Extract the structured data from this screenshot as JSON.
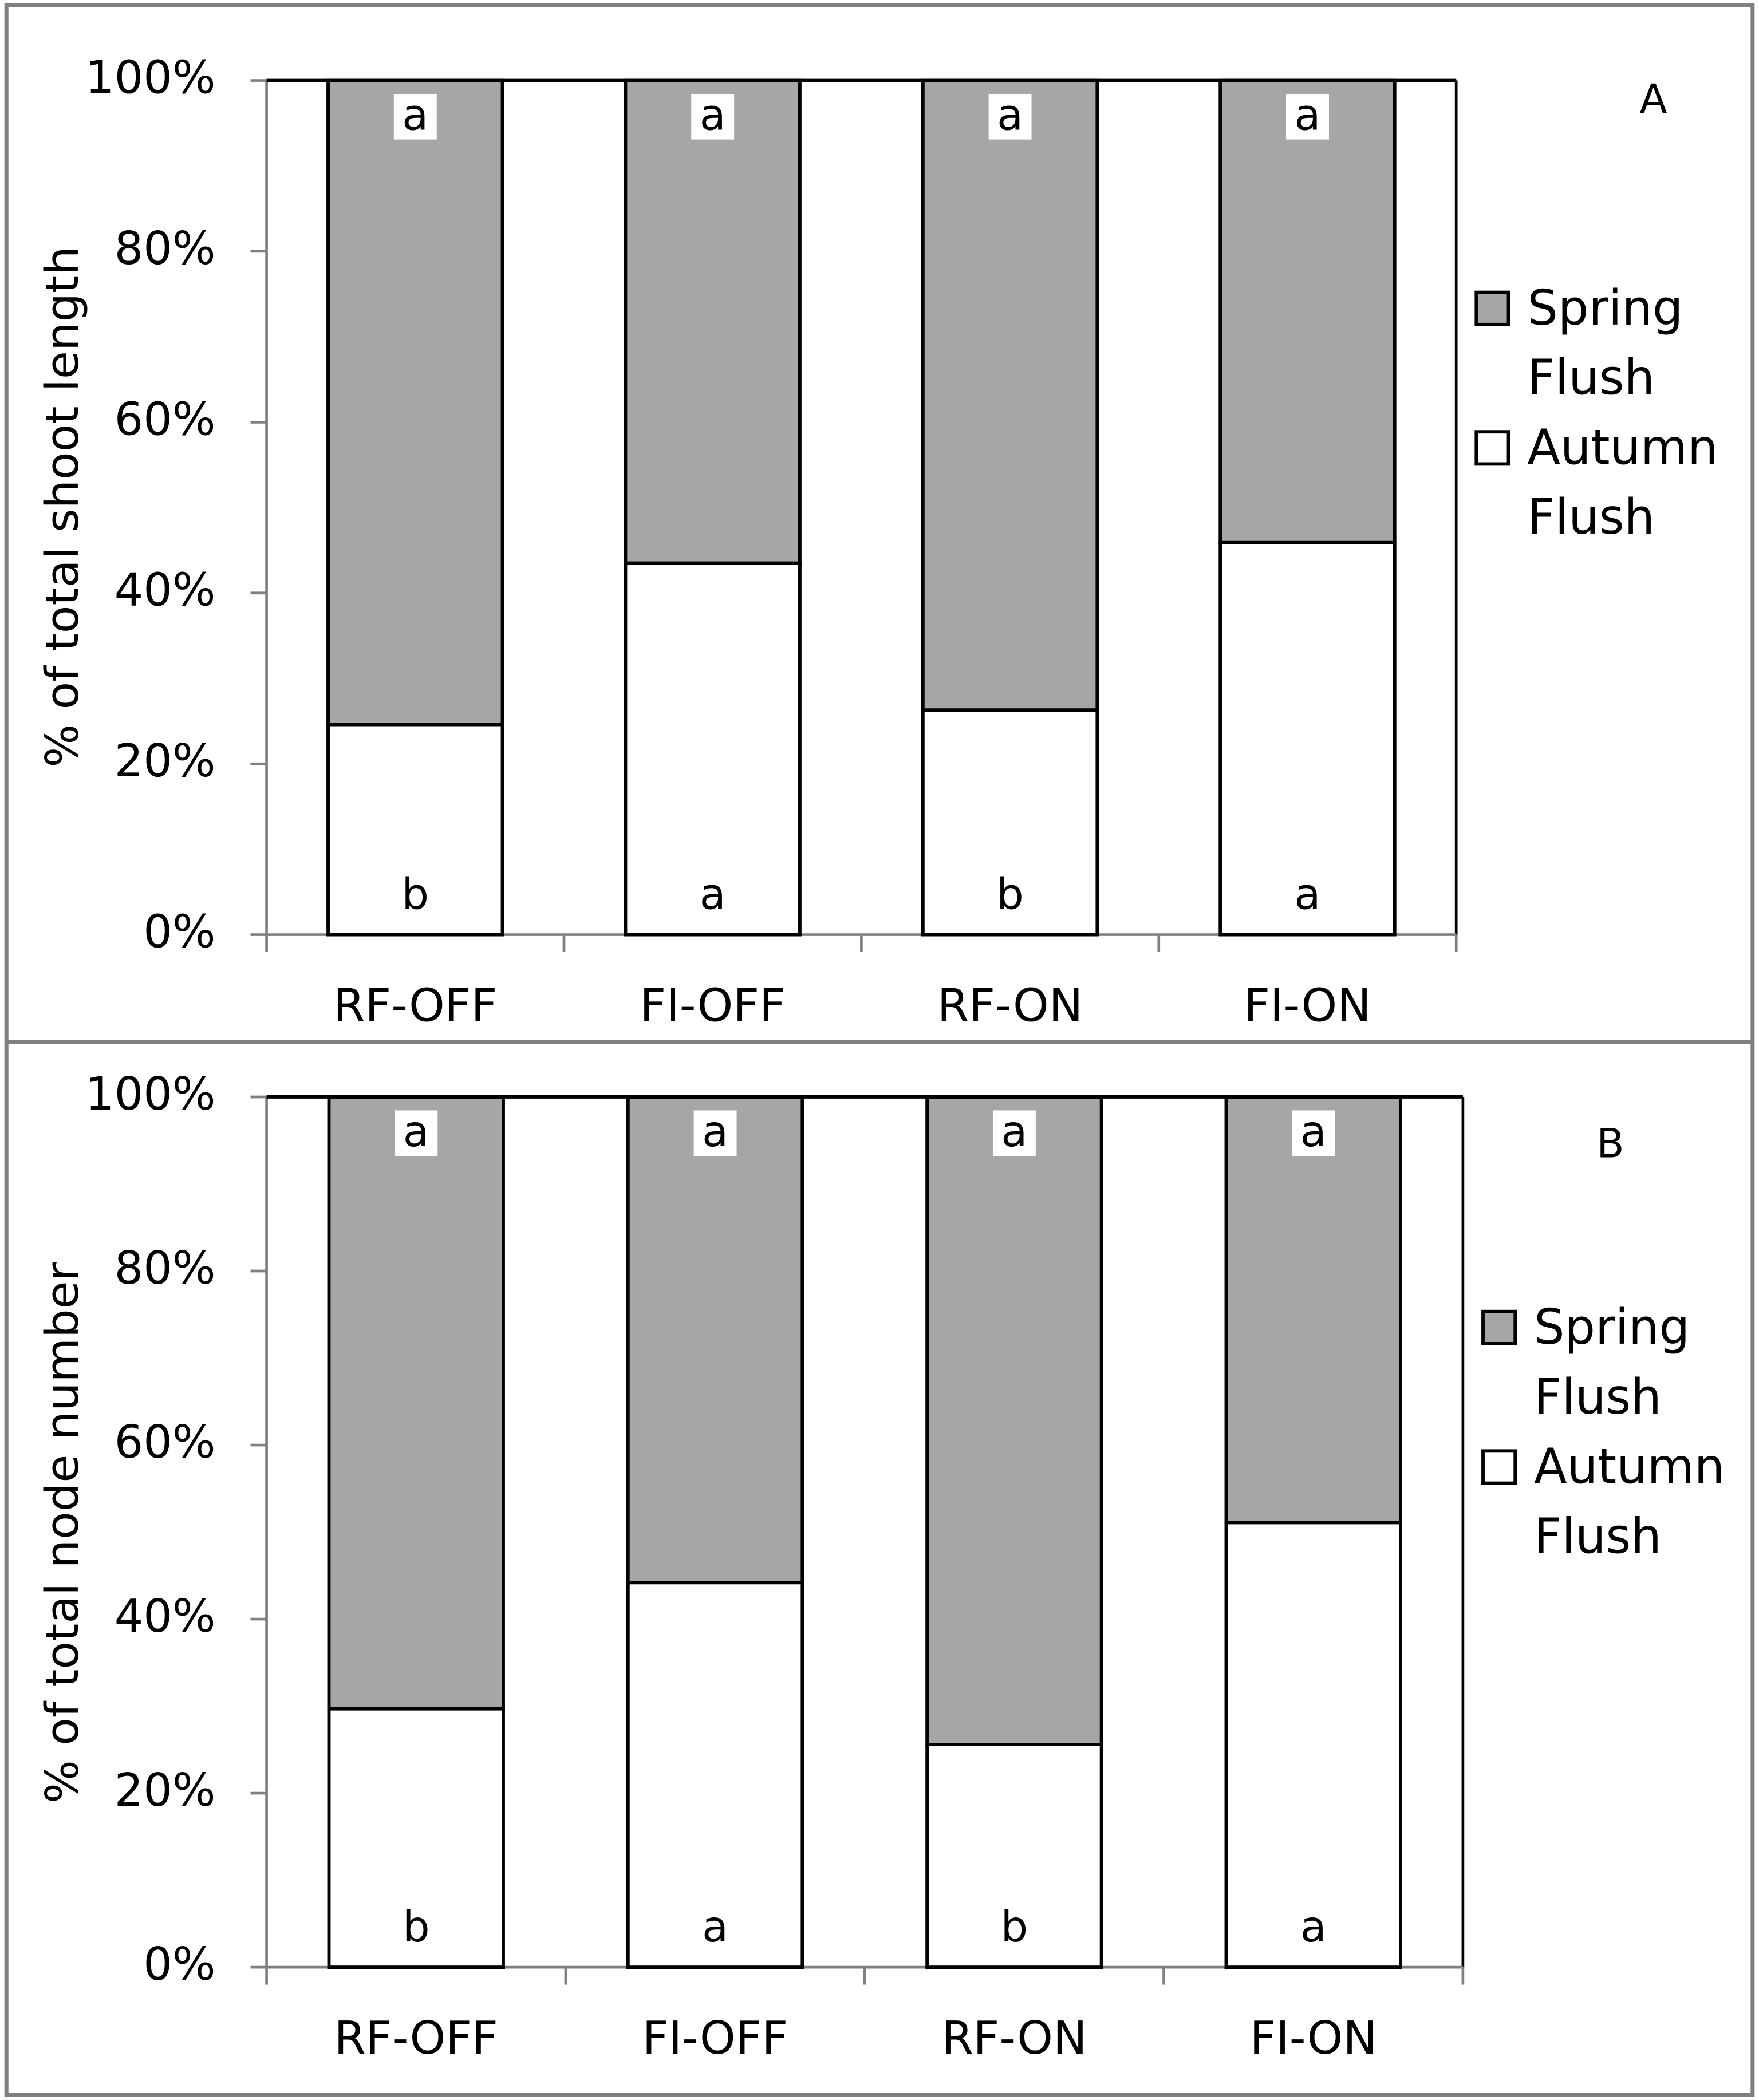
{
  "chart_data": [
    {
      "type": "bar",
      "stacked": true,
      "panel_label": "A",
      "ylabel": "% of total shoot length",
      "categories": [
        "RF-OFF",
        "FI-OFF",
        "RF-ON",
        "FI-ON"
      ],
      "series": [
        {
          "name": "Autumn Flush",
          "color": "#ffffff",
          "values": [
            24.6,
            43.5,
            26.3,
            45.9
          ],
          "letters": [
            "b",
            "a",
            "b",
            "a"
          ]
        },
        {
          "name": "Spring Flush",
          "color": "#a6a6a6",
          "values": [
            75.4,
            56.5,
            73.7,
            54.1
          ],
          "letters": [
            "a",
            "a",
            "a",
            "a"
          ]
        }
      ],
      "ylim": [
        0,
        100
      ],
      "yticks": [
        {
          "value": 0,
          "label": "0%"
        },
        {
          "value": 20,
          "label": "20%"
        },
        {
          "value": 40,
          "label": "40%"
        },
        {
          "value": 60,
          "label": "60%"
        },
        {
          "value": 80,
          "label": "80%"
        },
        {
          "value": 100,
          "label": "100%"
        }
      ]
    },
    {
      "type": "bar",
      "stacked": true,
      "panel_label": "B",
      "ylabel": "% of total node number",
      "categories": [
        "RF-OFF",
        "FI-OFF",
        "RF-ON",
        "FI-ON"
      ],
      "series": [
        {
          "name": "Autumn Flush",
          "color": "#ffffff",
          "values": [
            29.7,
            44.2,
            25.6,
            51.1
          ],
          "letters": [
            "b",
            "a",
            "b",
            "a"
          ]
        },
        {
          "name": "Spring Flush",
          "color": "#a6a6a6",
          "values": [
            70.3,
            55.8,
            74.4,
            48.9
          ],
          "letters": [
            "a",
            "a",
            "a",
            "a"
          ]
        }
      ],
      "ylim": [
        0,
        100
      ],
      "yticks": [
        {
          "value": 0,
          "label": "0%"
        },
        {
          "value": 20,
          "label": "20%"
        },
        {
          "value": 40,
          "label": "40%"
        },
        {
          "value": 60,
          "label": "60%"
        },
        {
          "value": 80,
          "label": "80%"
        },
        {
          "value": 100,
          "label": "100%"
        }
      ]
    }
  ]
}
